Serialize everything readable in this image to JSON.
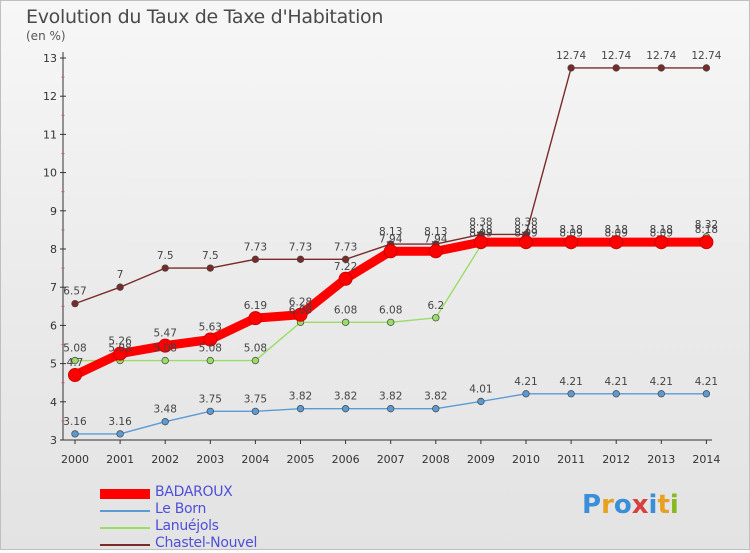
{
  "title": "Evolution du Taux de Taxe d'Habitation",
  "unit_label": "(en %)",
  "logo_text": "Proxiti",
  "chart_data": {
    "type": "line",
    "title": "Evolution du Taux de Taxe d'Habitation",
    "ylabel": "(en %)",
    "xlabel": "",
    "x": [
      2000,
      2001,
      2002,
      2003,
      2004,
      2005,
      2006,
      2007,
      2008,
      2009,
      2010,
      2011,
      2012,
      2013,
      2014
    ],
    "ylim": [
      3,
      13
    ],
    "yticks": [
      3,
      4,
      5,
      6,
      7,
      8,
      9,
      10,
      11,
      12,
      13
    ],
    "grid": false,
    "legend_position": "bottom-left",
    "series": [
      {
        "name": "BADAROUX",
        "color": "#ff0000",
        "values": [
          4.7,
          5.26,
          5.47,
          5.63,
          6.19,
          6.28,
          7.22,
          7.94,
          7.94,
          8.18,
          8.18,
          8.18,
          8.18,
          8.18,
          8.18
        ],
        "labels": [
          "4.7",
          "5.26",
          "5.47",
          "5.63",
          "6.19",
          "6.28",
          "7.22",
          "7.94",
          "7.94",
          "8.18",
          "8.18",
          "8.18",
          "8.18",
          "8.18",
          "8.18"
        ]
      },
      {
        "name": "Le Born",
        "color": "#5b9bd5",
        "values": [
          3.16,
          3.16,
          3.48,
          3.75,
          3.75,
          3.82,
          3.82,
          3.82,
          3.82,
          4.01,
          4.21,
          4.21,
          4.21,
          4.21,
          4.21
        ],
        "labels": [
          "3.16",
          "3.16",
          "3.48",
          "3.75",
          "3.75",
          "3.82",
          "3.82",
          "3.82",
          "3.82",
          "4.01",
          "4.21",
          "4.21",
          "4.21",
          "4.21",
          "4.21"
        ]
      },
      {
        "name": "Lanuéjols",
        "color": "#99dd66",
        "values": [
          5.08,
          5.08,
          5.08,
          5.08,
          5.08,
          6.08,
          6.08,
          6.08,
          6.2,
          8.09,
          8.09,
          8.09,
          8.09,
          8.09,
          8.32
        ],
        "labels": [
          "5.08",
          "5.08",
          "5.08",
          "5.08",
          "5.08",
          "6.08",
          "6.08",
          "6.08",
          "6.2",
          "8.09",
          "8.09",
          "8.09",
          "8.09",
          "8.09",
          "8.32"
        ]
      },
      {
        "name": "Chastel-Nouvel",
        "color": "#7b2a2a",
        "values": [
          6.57,
          7,
          7.5,
          7.5,
          7.73,
          7.73,
          7.73,
          8.13,
          8.13,
          8.38,
          8.38,
          12.74,
          12.74,
          12.74,
          12.74
        ],
        "labels": [
          "6.57",
          "7",
          "7.5",
          "7.5",
          "7.73",
          "7.73",
          "7.73",
          "8.13",
          "8.13",
          "8.38",
          "8.38",
          "12.74",
          "12.74",
          "12.74",
          "12.74"
        ]
      }
    ]
  }
}
